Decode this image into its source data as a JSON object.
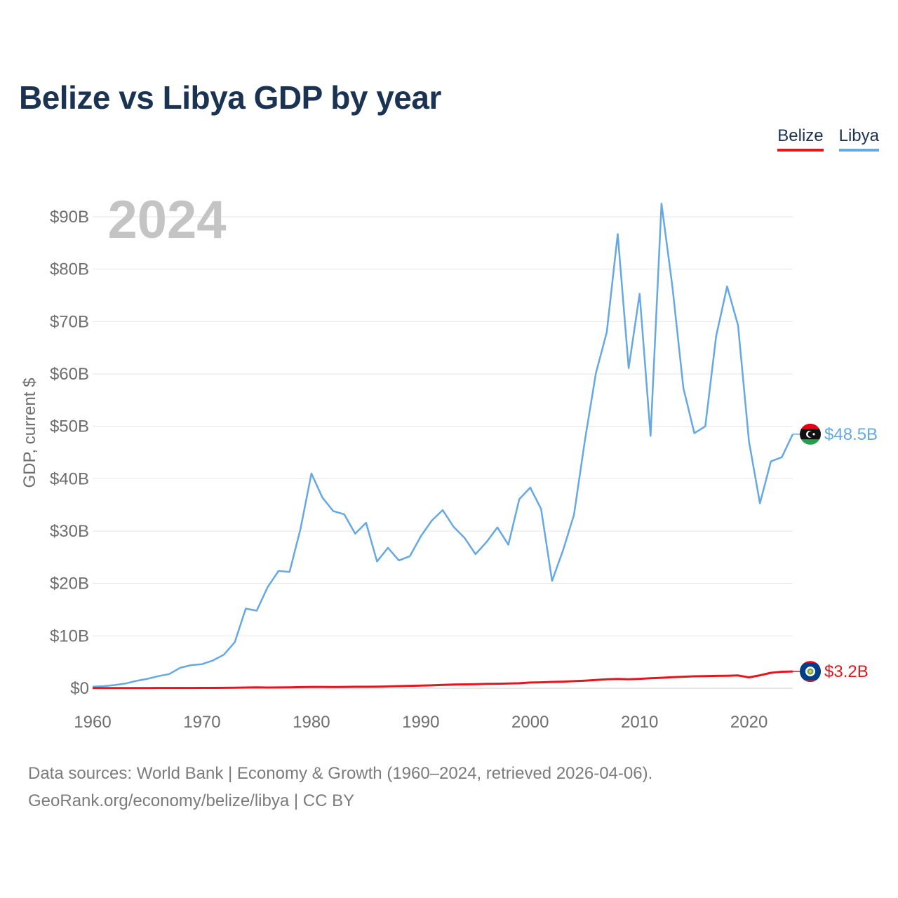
{
  "title": "Belize vs Libya GDP by year",
  "legend": {
    "belize": "Belize",
    "libya": "Libya"
  },
  "year_watermark": "2024",
  "footer": {
    "line1": "Data sources: World Bank | Economy & Growth (1960–2024, retrieved 2026-04-06).",
    "line2": "GeoRank.org/economy/belize/libya | CC BY"
  },
  "colors": {
    "belize": "#e8141b",
    "libya": "#64a8e4",
    "title": "#1b3352",
    "grid": "#e6e6e6",
    "axis_text": "#6e6e6e"
  },
  "chart_data": {
    "type": "line",
    "title": "Belize vs Libya GDP by year",
    "xlabel": "",
    "ylabel": "GDP, current $",
    "xlim": [
      1960,
      2024
    ],
    "ylim": [
      0,
      90
    ],
    "y_unit": "billions USD",
    "x_ticks": [
      1960,
      1970,
      1980,
      1990,
      2000,
      2010,
      2020
    ],
    "y_ticks": [
      0,
      10,
      20,
      30,
      40,
      50,
      60,
      70,
      80,
      90
    ],
    "y_tick_labels": [
      "$0",
      "$10B",
      "$20B",
      "$30B",
      "$40B",
      "$50B",
      "$60B",
      "$70B",
      "$80B",
      "$90B"
    ],
    "grid": true,
    "legend": "top-right",
    "x": [
      1960,
      1961,
      1962,
      1963,
      1964,
      1965,
      1966,
      1967,
      1968,
      1969,
      1970,
      1971,
      1972,
      1973,
      1974,
      1975,
      1976,
      1977,
      1978,
      1979,
      1980,
      1981,
      1982,
      1983,
      1984,
      1985,
      1986,
      1987,
      1988,
      1989,
      1990,
      1991,
      1992,
      1993,
      1994,
      1995,
      1996,
      1997,
      1998,
      1999,
      2000,
      2001,
      2002,
      2003,
      2004,
      2005,
      2006,
      2007,
      2008,
      2009,
      2010,
      2011,
      2012,
      2013,
      2014,
      2015,
      2016,
      2017,
      2018,
      2019,
      2020,
      2021,
      2022,
      2023,
      2024
    ],
    "series": [
      {
        "name": "Libya",
        "color": "#64a8e4",
        "end_label": "$48.5B",
        "values": [
          0.3,
          0.4,
          0.6,
          0.9,
          1.4,
          1.8,
          2.3,
          2.7,
          3.9,
          4.4,
          4.6,
          5.3,
          6.4,
          8.8,
          15.2,
          14.8,
          19.3,
          22.4,
          22.2,
          30.4,
          41.0,
          36.4,
          33.8,
          33.2,
          29.5,
          31.6,
          24.2,
          26.8,
          24.4,
          25.2,
          29.0,
          32.0,
          34.0,
          30.8,
          28.7,
          25.6,
          27.9,
          30.7,
          27.4,
          36.1,
          38.3,
          34.2,
          20.5,
          26.3,
          33.1,
          47.3,
          60.1,
          68.0,
          86.7,
          61.1,
          75.3,
          48.2,
          92.5,
          76.6,
          57.3,
          48.7,
          50.0,
          67.2,
          76.7,
          69.3,
          47.1,
          35.3,
          43.3,
          44.1,
          48.5
        ]
      },
      {
        "name": "Belize",
        "color": "#e8141b",
        "end_label": "$3.2B",
        "values": [
          0.03,
          0.03,
          0.03,
          0.04,
          0.04,
          0.04,
          0.05,
          0.05,
          0.05,
          0.06,
          0.07,
          0.07,
          0.08,
          0.1,
          0.13,
          0.17,
          0.13,
          0.15,
          0.18,
          0.21,
          0.25,
          0.26,
          0.24,
          0.25,
          0.28,
          0.28,
          0.29,
          0.35,
          0.4,
          0.45,
          0.5,
          0.55,
          0.63,
          0.7,
          0.73,
          0.78,
          0.83,
          0.86,
          0.9,
          0.95,
          1.08,
          1.12,
          1.2,
          1.26,
          1.35,
          1.44,
          1.58,
          1.71,
          1.78,
          1.72,
          1.8,
          1.9,
          1.99,
          2.1,
          2.2,
          2.28,
          2.3,
          2.36,
          2.38,
          2.44,
          2.07,
          2.46,
          2.95,
          3.15,
          3.2
        ]
      }
    ]
  }
}
